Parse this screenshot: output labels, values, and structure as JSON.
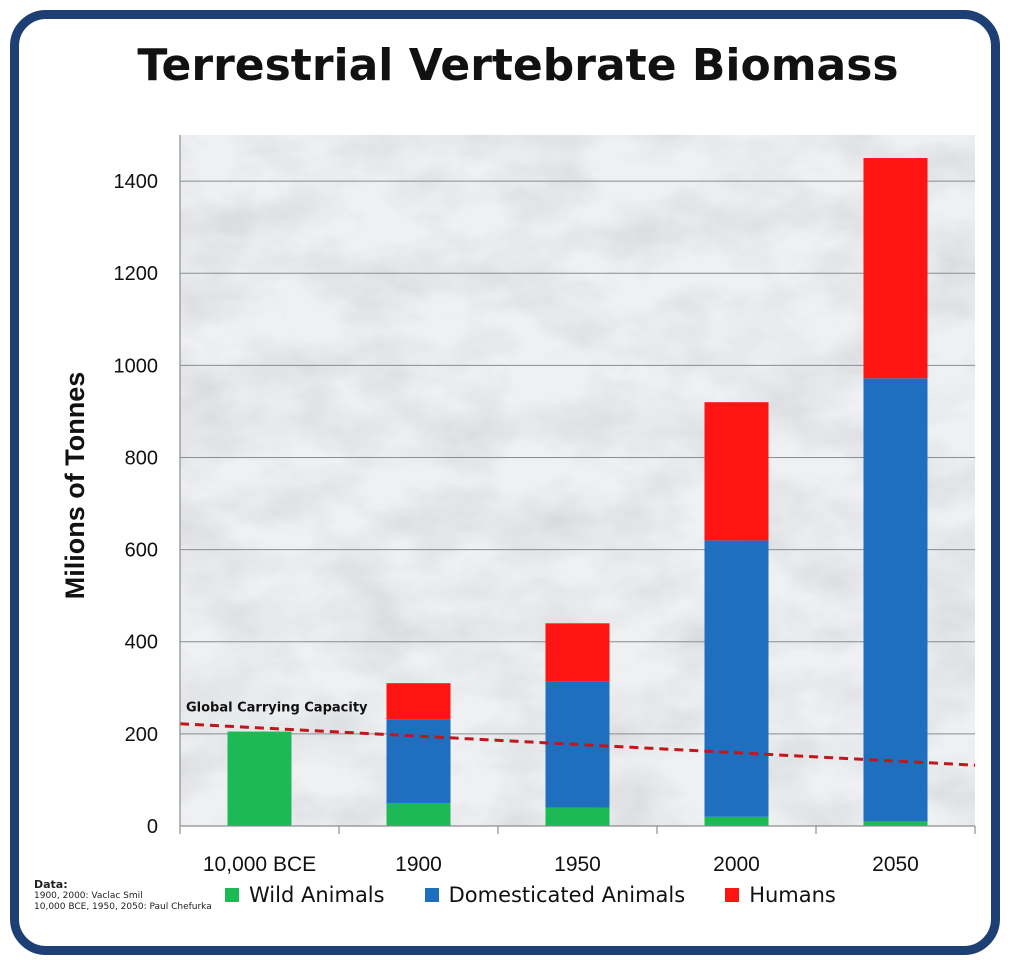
{
  "title": "Terrestrial Vertebrate Biomass",
  "source_note": {
    "heading": "Data:",
    "lines": [
      "1900, 2000: Vaclac Smil",
      "10,000 BCE, 1950, 2050: Paul Chefurka"
    ]
  },
  "chart_data": {
    "type": "bar",
    "stacked": true,
    "title": "Terrestrial Vertebrate Biomass",
    "xlabel": "",
    "ylabel": "Milions of Tonnes",
    "categories": [
      "10,000 BCE",
      "1900",
      "1950",
      "2000",
      "2050"
    ],
    "series": [
      {
        "name": "Wild Animals",
        "color": "#1db954",
        "values": [
          205,
          50,
          40,
          20,
          10
        ]
      },
      {
        "name": "Domesticated Animals",
        "color": "#1f6fbf",
        "values": [
          0,
          182,
          273,
          600,
          962
        ]
      },
      {
        "name": "Humans",
        "color": "#ff1414",
        "values": [
          0,
          78,
          127,
          300,
          478
        ]
      }
    ],
    "ylim": [
      0,
      1500
    ],
    "yticks": [
      0,
      200,
      400,
      600,
      800,
      1000,
      1200,
      1400
    ],
    "grid": true,
    "legend_position": "bottom",
    "reference_line": {
      "label": "Global Carrying Capacity",
      "style": "dashed",
      "color": "#c0171c",
      "y_start": 222,
      "y_end": 132
    }
  }
}
